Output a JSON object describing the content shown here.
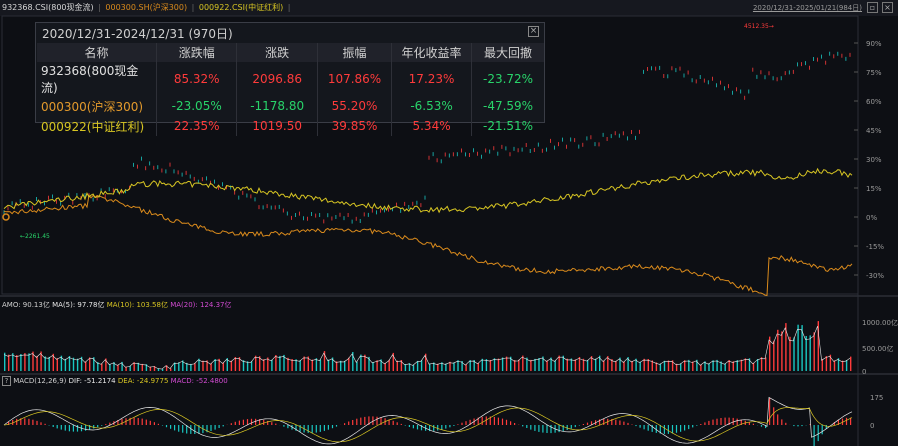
{
  "topbar": {
    "series_a": "932368.CSI(800现金流)",
    "series_b": "000300.SH(沪深300)",
    "series_c": "000922.CSI(中证红利)",
    "range": "2020/12/31-2025/01/21(984日)"
  },
  "panel": {
    "title": "2020/12/31-2024/12/31 (970日)",
    "headers": [
      "名称",
      "涨跌幅",
      "涨跌",
      "振幅",
      "年化收益率",
      "最大回撤"
    ],
    "rows": [
      {
        "name": "932368(800现金流)",
        "chg_pct": "85.32%",
        "chg": "2096.86",
        "amp": "107.86%",
        "annual": "17.23%",
        "mdd": "-23.72%"
      },
      {
        "name": "000300(沪深300)",
        "chg_pct": "-23.05%",
        "chg": "-1178.80",
        "amp": "55.20%",
        "annual": "-6.53%",
        "mdd": "-47.59%"
      },
      {
        "name": "000922(中证红利)",
        "chg_pct": "22.35%",
        "chg": "1019.50",
        "amp": "39.85%",
        "annual": "5.34%",
        "mdd": "-21.51%"
      }
    ]
  },
  "main_chart": {
    "y_ticks": [
      "90%",
      "75%",
      "60%",
      "45%",
      "30%",
      "15%",
      "0%",
      "-15%",
      "-30%"
    ],
    "low_label": "2261.45",
    "high_label": "4512.35"
  },
  "volume": {
    "amo": "AMO: 90.13亿",
    "ma5": "MA(5): 97.78亿",
    "ma10": "MA(10): 103.58亿",
    "ma20": "MA(20): 124.37亿",
    "ticks": [
      "1000.00亿",
      "500.00亿",
      "0"
    ]
  },
  "macd": {
    "help": "?",
    "label": "MACD(12,26,9)",
    "dif": "DIF: -51.2174",
    "dea": "DEA: -24.9775",
    "macd": "MACD: -52.4800",
    "ticks": [
      "175",
      "0"
    ]
  },
  "colors": {
    "up": "#ff3b3b",
    "down": "#19c7c2",
    "yellow": "#d8c623",
    "orange": "#d98a1c",
    "magenta": "#d24bd2",
    "neutral": "#e8e8e8"
  }
}
